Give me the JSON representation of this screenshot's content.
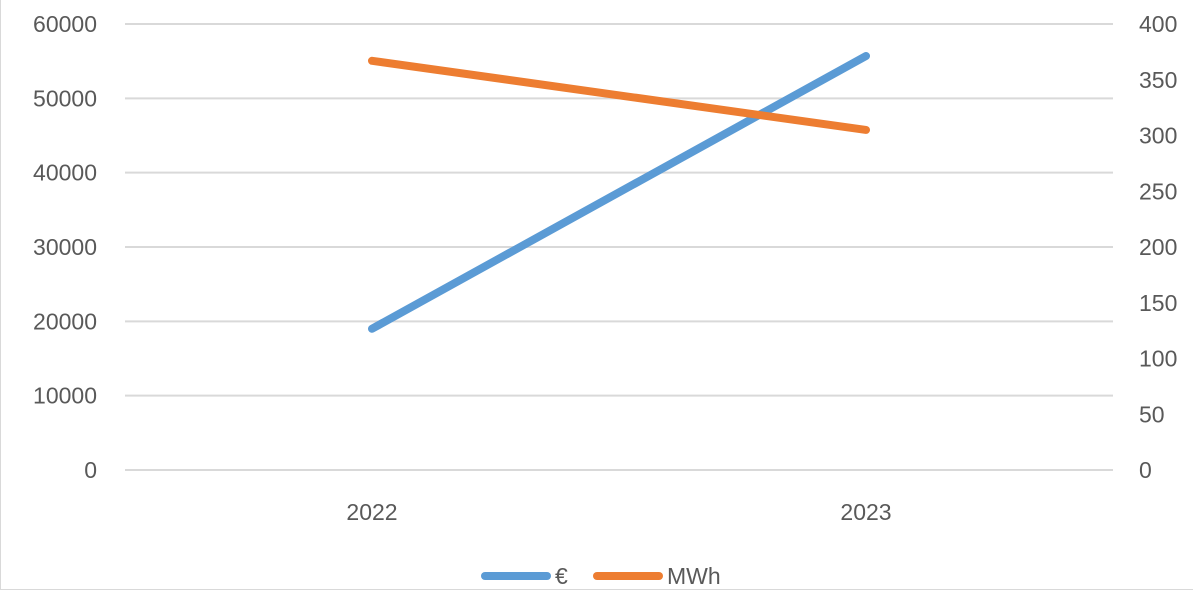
{
  "chart_data": {
    "type": "line",
    "categories": [
      "2022",
      "2023"
    ],
    "series": [
      {
        "name": "€",
        "axis": "left",
        "values": [
          19000,
          55700
        ],
        "color": "#5b9bd5"
      },
      {
        "name": "MWh",
        "axis": "right",
        "values": [
          367,
          305
        ],
        "color": "#ed7d31"
      }
    ],
    "y_left": {
      "ylim": [
        0,
        60000
      ],
      "ticks": [
        "0",
        "10000",
        "20000",
        "30000",
        "40000",
        "50000",
        "60000"
      ]
    },
    "y_right": {
      "ylim": [
        0,
        400
      ],
      "ticks": [
        "0",
        "50",
        "100",
        "150",
        "200",
        "250",
        "300",
        "350",
        "400"
      ]
    },
    "grid": true,
    "legend_position": "bottom",
    "gridline_color": "#d9d9d9",
    "text_color": "#595959"
  }
}
